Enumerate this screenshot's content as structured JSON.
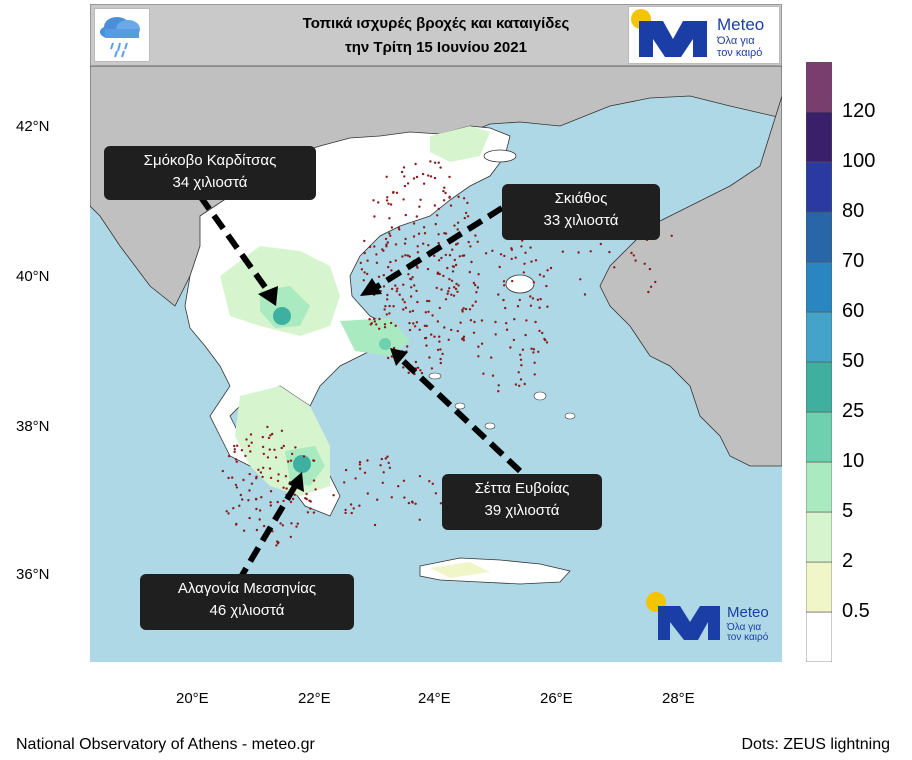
{
  "title": {
    "line1": "Τοπικά ισχυρές βροχές και καταιγίδες",
    "line2": "την Τρίτη 15 Ιουνίου 2021"
  },
  "brand": {
    "name": "Meteo",
    "tagline_line1": "Όλα για",
    "tagline_line2": "τον καιρό",
    "color": "#1a3ea6",
    "sun_color": "#f5c400"
  },
  "callouts": [
    {
      "line1": "Σμόκοβο Καρδίτσας",
      "line2": "34 χιλιοστά"
    },
    {
      "line1": "Σκιάθος",
      "line2": "33 χιλιοστά"
    },
    {
      "line1": "Σέττα Ευβοίας",
      "line2": "39 χιλιοστά"
    },
    {
      "line1": "Αλαγονία Μεσσηνίας",
      "line2": "46 χιλιοστά"
    }
  ],
  "axes": {
    "lat_ticks": [
      "42°N",
      "40°N",
      "38°N",
      "36°N"
    ],
    "lon_ticks": [
      "20°E",
      "22°E",
      "24°E",
      "26°E",
      "28°E"
    ]
  },
  "legend": {
    "levels": [
      "0.5",
      "2",
      "5",
      "10",
      "25",
      "50",
      "60",
      "70",
      "80",
      "100",
      "120"
    ],
    "colors": [
      "#ffffff",
      "#f0f6c8",
      "#d6f5cf",
      "#aaeac0",
      "#6fd0b0",
      "#3fb0a0",
      "#43a3c8",
      "#2a86c0",
      "#2866a8",
      "#2a3aa0",
      "#3a1f6a",
      "#7a3e6e"
    ]
  },
  "colors": {
    "sea": "#aed8e6",
    "land_outside": "#c0c0c0",
    "land_greece": "#ffffff",
    "lightning": "#8b1a1a"
  },
  "footer": {
    "left": "National Observatory of Athens - meteo.gr",
    "right": "Dots: ZEUS lightning"
  }
}
